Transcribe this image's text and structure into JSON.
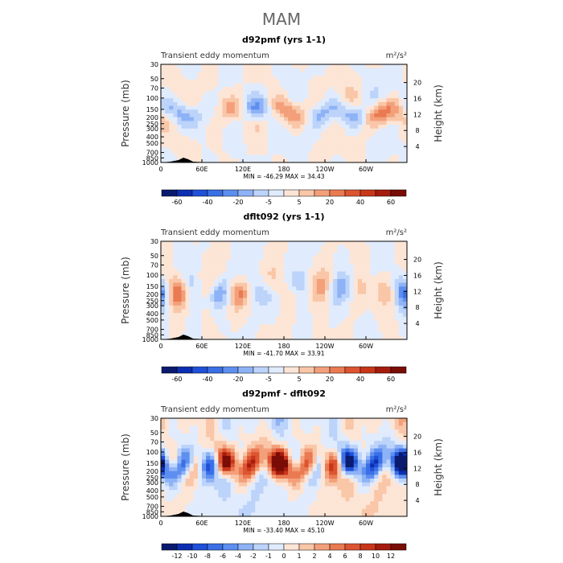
{
  "page_title": "MAM",
  "chart_data": [
    {
      "type": "heatmap",
      "title": "d92pmf (yrs 1-1)",
      "left_label": "Transient eddy momentum",
      "units": "m²/s²",
      "xlabel": "",
      "ylabel": "Pressure (mb)",
      "ylabel_right": "Height (km)",
      "x_ticks": [
        "0",
        "60E",
        "120E",
        "180",
        "120W",
        "60W"
      ],
      "y_ticks": [
        "30",
        "50",
        "70",
        "100",
        "150",
        "200",
        "250",
        "300",
        "400",
        "500",
        "700",
        "850",
        "1000"
      ],
      "y_right_ticks": [
        "20",
        "16",
        "12",
        "8",
        "4"
      ],
      "stats": "MIN = -46.29   MAX =  34.43",
      "colorbar_labels": [
        "-60",
        "-40",
        "-20",
        "-5",
        "5",
        "20",
        "40",
        "60"
      ],
      "colorbar_label_positions": [
        1,
        3,
        5,
        7,
        9,
        11,
        13,
        15
      ],
      "scale": 0.6,
      "seed": 3
    },
    {
      "type": "heatmap",
      "title": "dflt092 (yrs 1-1)",
      "left_label": "Transient eddy momentum",
      "units": "m²/s²",
      "xlabel": "",
      "ylabel": "Pressure (mb)",
      "ylabel_right": "Height (km)",
      "x_ticks": [
        "0",
        "60E",
        "120E",
        "180",
        "120W",
        "60W"
      ],
      "y_ticks": [
        "30",
        "50",
        "70",
        "100",
        "150",
        "200",
        "250",
        "300",
        "400",
        "500",
        "700",
        "850",
        "1000"
      ],
      "y_right_ticks": [
        "20",
        "16",
        "12",
        "8",
        "4"
      ],
      "stats": "MIN = -41.70   MAX =  33.91",
      "colorbar_labels": [
        "-60",
        "-40",
        "-20",
        "-5",
        "5",
        "20",
        "40",
        "60"
      ],
      "colorbar_label_positions": [
        1,
        3,
        5,
        7,
        9,
        11,
        13,
        15
      ],
      "scale": 0.6,
      "seed": 11
    },
    {
      "type": "heatmap",
      "title": "d92pmf - dflt092",
      "left_label": "Transient eddy momentum",
      "units": "m²/s²",
      "xlabel": "",
      "ylabel": "Pressure (mb)",
      "ylabel_right": "Height (km)",
      "x_ticks": [
        "0",
        "60E",
        "120E",
        "180",
        "120W",
        "60W"
      ],
      "y_ticks": [
        "30",
        "50",
        "70",
        "100",
        "150",
        "200",
        "250",
        "300",
        "400",
        "500",
        "700",
        "850",
        "1000"
      ],
      "y_right_ticks": [
        "20",
        "16",
        "12",
        "8",
        "4"
      ],
      "stats": "MIN = -33.40   MAX =  45.10",
      "colorbar_labels": [
        "-12",
        "-10",
        "-8",
        "-6",
        "-4",
        "-2",
        "-1",
        "0",
        "1",
        "2",
        "4",
        "6",
        "8",
        "10",
        "12"
      ],
      "colorbar_label_positions": [
        1,
        2,
        3,
        4,
        5,
        6,
        7,
        8,
        9,
        10,
        11,
        12,
        13,
        14,
        15
      ],
      "scale": 1.6,
      "seed": 29
    }
  ],
  "colorbar_colors": [
    "#0a1a6e",
    "#0b2fb0",
    "#1f50d8",
    "#3b6fe6",
    "#5e8ff0",
    "#8eb2f6",
    "#bcd3fa",
    "#e0ebfd",
    "#fde5d6",
    "#f9c6a8",
    "#f3a07a",
    "#ea7a52",
    "#dd5430",
    "#c8361a",
    "#a51c0e",
    "#7a0c06"
  ]
}
